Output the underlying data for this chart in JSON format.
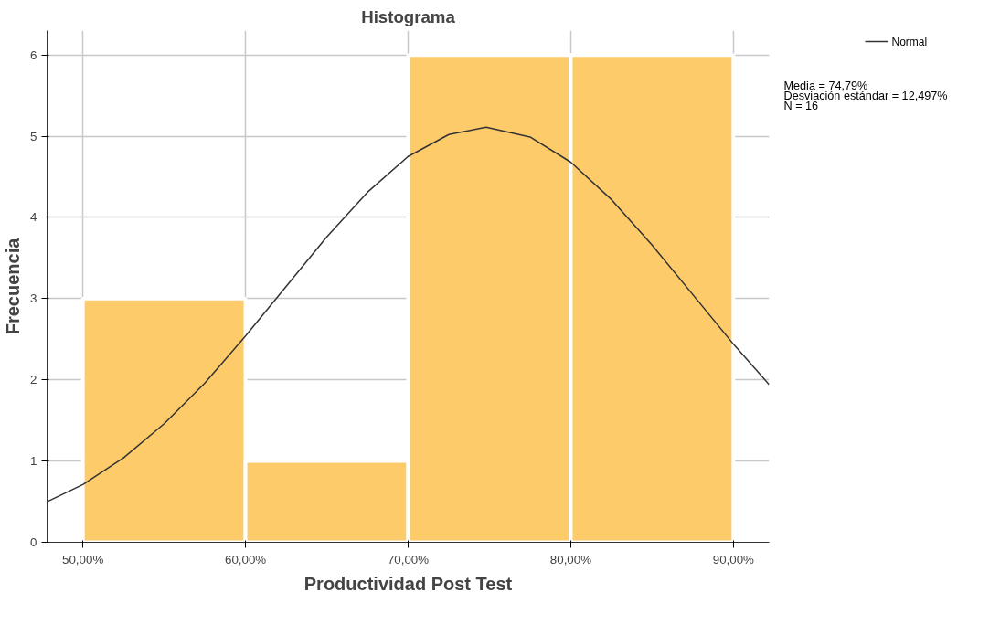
{
  "chart_data": {
    "type": "histogram",
    "title": "Histograma",
    "xlabel": "Productividad Post Test",
    "ylabel": "Frecuencia",
    "bins": [
      50,
      60,
      70,
      80,
      90
    ],
    "values": [
      3,
      1,
      6,
      6
    ],
    "color": "#fdcb6a",
    "series": [
      {
        "type": "line",
        "name": "Normal",
        "color": "#333333",
        "x": [
          47.8,
          50,
          52.5,
          55,
          57.5,
          60,
          62.5,
          65,
          67.5,
          70,
          72.5,
          74.79,
          77.5,
          80,
          82.5,
          85,
          87.5,
          90,
          92.2
        ],
        "values": [
          0.5,
          0.71,
          1.04,
          1.46,
          1.96,
          2.54,
          3.15,
          3.76,
          4.31,
          4.75,
          5.02,
          5.11,
          4.99,
          4.68,
          4.22,
          3.66,
          3.05,
          2.44,
          1.94
        ]
      }
    ],
    "xlim": [
      47.8,
      92.2
    ],
    "ylim": [
      0,
      6.3
    ],
    "xticks": [
      {
        "value": 50,
        "label": "50,00%"
      },
      {
        "value": 60,
        "label": "60,00%"
      },
      {
        "value": 70,
        "label": "70,00%"
      },
      {
        "value": 80,
        "label": "80,00%"
      },
      {
        "value": 90,
        "label": "90,00%"
      }
    ],
    "yticks": [
      0,
      1,
      2,
      3,
      4,
      5,
      6
    ],
    "grid": true,
    "legend": "top right",
    "annotations": [
      "Media = 74,79%",
      "Desviación estándar = 12,497%",
      "N = 16"
    ]
  }
}
